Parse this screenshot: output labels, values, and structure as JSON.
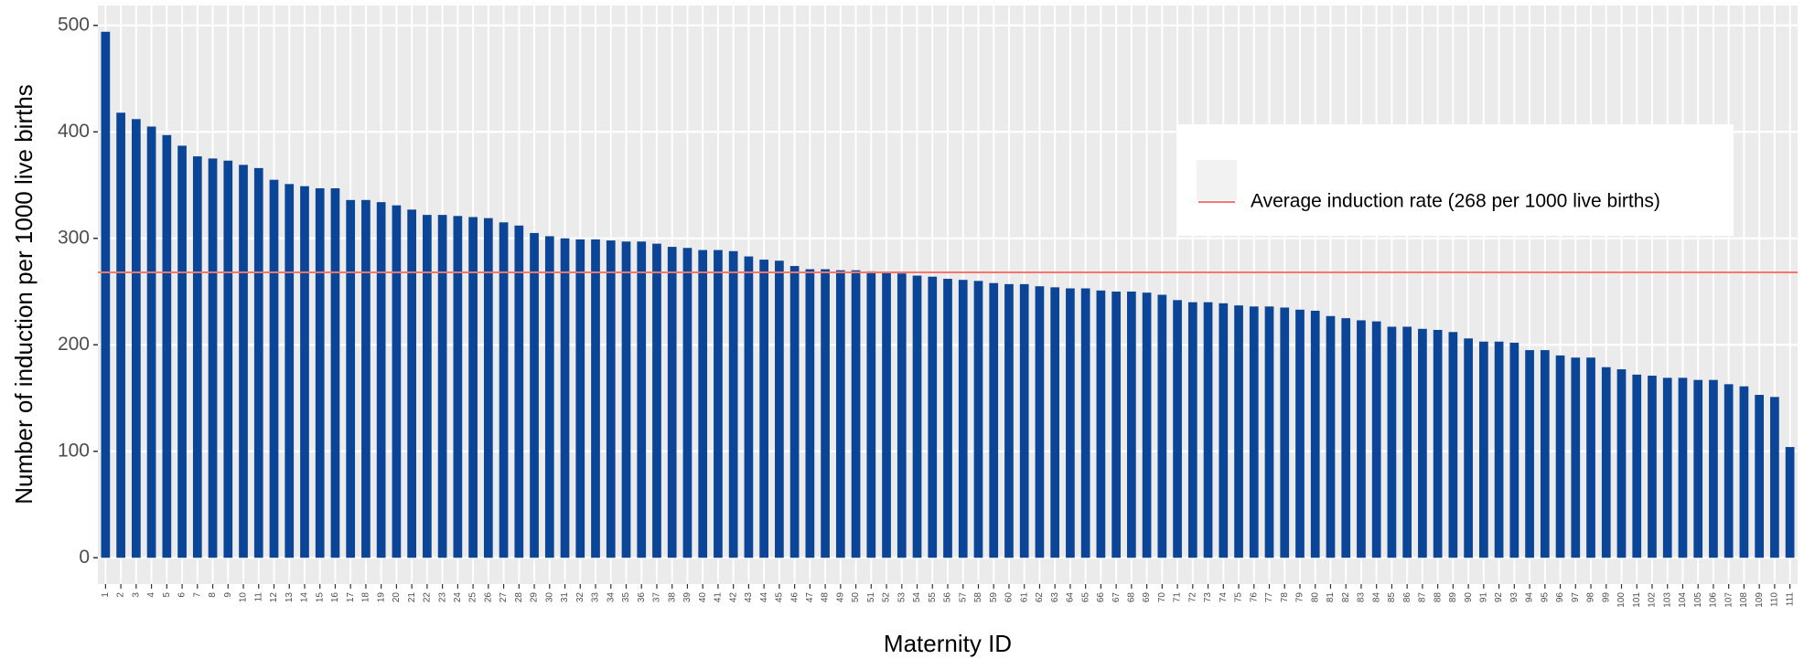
{
  "chart_data": {
    "type": "bar",
    "x_label": "Maternity ID",
    "y_label": "Number of induction per 1000 live births",
    "categories": [
      "1",
      "2",
      "3",
      "4",
      "5",
      "6",
      "7",
      "8",
      "9",
      "10",
      "11",
      "12",
      "13",
      "14",
      "15",
      "16",
      "17",
      "18",
      "19",
      "20",
      "21",
      "22",
      "23",
      "24",
      "25",
      "26",
      "27",
      "28",
      "29",
      "30",
      "31",
      "32",
      "33",
      "34",
      "35",
      "36",
      "37",
      "38",
      "39",
      "40",
      "41",
      "42",
      "43",
      "44",
      "45",
      "46",
      "47",
      "48",
      "49",
      "50",
      "51",
      "52",
      "53",
      "54",
      "55",
      "56",
      "57",
      "58",
      "59",
      "60",
      "61",
      "62",
      "63",
      "64",
      "65",
      "66",
      "67",
      "68",
      "69",
      "70",
      "71",
      "72",
      "73",
      "74",
      "75",
      "76",
      "77",
      "78",
      "79",
      "80",
      "81",
      "82",
      "83",
      "84",
      "85",
      "86",
      "87",
      "88",
      "89",
      "90",
      "91",
      "92",
      "93",
      "94",
      "95",
      "96",
      "97",
      "98",
      "99",
      "100",
      "101",
      "102",
      "103",
      "104",
      "105",
      "106",
      "107",
      "108",
      "109",
      "110",
      "111"
    ],
    "values": [
      494,
      418,
      412,
      405,
      397,
      387,
      377,
      375,
      373,
      369,
      366,
      355,
      351,
      349,
      347,
      347,
      336,
      336,
      334,
      331,
      327,
      322,
      322,
      321,
      320,
      319,
      315,
      312,
      305,
      302,
      300,
      299,
      299,
      298,
      297,
      297,
      295,
      292,
      291,
      289,
      289,
      288,
      283,
      280,
      279,
      274,
      271,
      271,
      270,
      270,
      269,
      268,
      267,
      265,
      264,
      262,
      261,
      260,
      258,
      257,
      257,
      255,
      254,
      253,
      253,
      251,
      250,
      250,
      249,
      247,
      242,
      240,
      240,
      239,
      237,
      236,
      236,
      235,
      233,
      232,
      227,
      225,
      223,
      222,
      217,
      217,
      215,
      214,
      212,
      206,
      203,
      203,
      202,
      195,
      195,
      190,
      188,
      188,
      179,
      177,
      172,
      171,
      169,
      169,
      167,
      167,
      163,
      161,
      153,
      151,
      104
    ],
    "color": "#0B4597",
    "reference_line": {
      "name": "Average induction rate (268 per 1000 live births)",
      "value": 268,
      "color": "#F8766D"
    },
    "ylim": [
      -24.7,
      518.7
    ],
    "yticks": [
      0,
      100,
      200,
      300,
      400,
      500
    ],
    "grid": true,
    "legend": "top-right"
  }
}
